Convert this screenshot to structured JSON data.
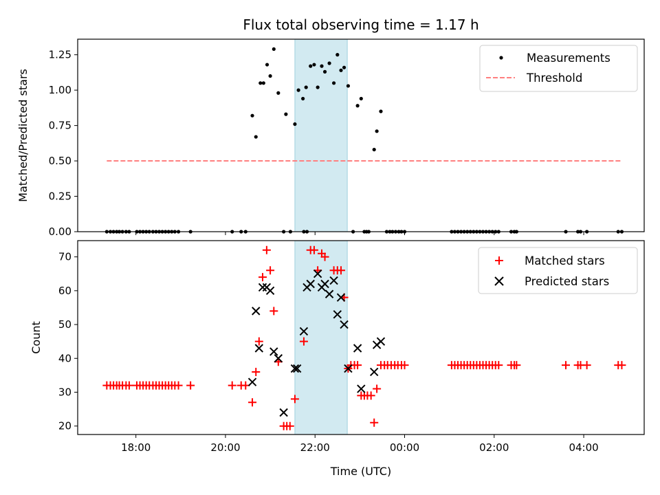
{
  "chart_data": {
    "title": "Flux total observing time = 1.17 h",
    "xlabel": "Time (UTC)",
    "x_unit": "hours (UTC, continuing past midnight)",
    "x_ticks": [
      {
        "value": 18,
        "label": "18:00"
      },
      {
        "value": 20,
        "label": "20:00"
      },
      {
        "value": 22,
        "label": "22:00"
      },
      {
        "value": 24,
        "label": "00:00"
      },
      {
        "value": 26,
        "label": "02:00"
      },
      {
        "value": 28,
        "label": "04:00"
      }
    ],
    "xlim": [
      16.7,
      29.35
    ],
    "highlight_span": [
      21.55,
      22.72
    ],
    "highlight_color": "#add8e6",
    "panels": [
      {
        "type": "scatter",
        "ylabel": "Matched/Predicted stars",
        "ylim": [
          0,
          1.36
        ],
        "y_ticks": [
          {
            "value": 0,
            "label": "0.00"
          },
          {
            "value": 0.25,
            "label": "0.25"
          },
          {
            "value": 0.5,
            "label": "0.50"
          },
          {
            "value": 0.75,
            "label": "0.75"
          },
          {
            "value": 1.0,
            "label": "1.00"
          },
          {
            "value": 1.25,
            "label": "1.25"
          }
        ],
        "legend_position": "top-right",
        "series": [
          {
            "name": "Measurements",
            "marker": "dot",
            "color": "#000000",
            "points": [
              [
                17.35,
                0
              ],
              [
                17.43,
                0
              ],
              [
                17.5,
                0
              ],
              [
                17.57,
                0
              ],
              [
                17.63,
                0
              ],
              [
                17.7,
                0
              ],
              [
                17.78,
                0
              ],
              [
                17.85,
                0
              ],
              [
                18.02,
                0
              ],
              [
                18.09,
                0
              ],
              [
                18.16,
                0
              ],
              [
                18.23,
                0
              ],
              [
                18.3,
                0
              ],
              [
                18.38,
                0
              ],
              [
                18.45,
                0
              ],
              [
                18.52,
                0
              ],
              [
                18.59,
                0
              ],
              [
                18.66,
                0
              ],
              [
                18.73,
                0
              ],
              [
                18.8,
                0
              ],
              [
                18.87,
                0
              ],
              [
                18.95,
                0
              ],
              [
                19.22,
                0
              ],
              [
                20.15,
                0
              ],
              [
                20.35,
                0
              ],
              [
                20.45,
                0
              ],
              [
                20.6,
                0.82
              ],
              [
                20.68,
                0.67
              ],
              [
                20.78,
                1.05
              ],
              [
                20.85,
                1.05
              ],
              [
                20.93,
                1.18
              ],
              [
                21.0,
                1.1
              ],
              [
                21.08,
                1.29
              ],
              [
                21.18,
                0.98
              ],
              [
                21.35,
                0.83
              ],
              [
                21.55,
                0.76
              ],
              [
                21.3,
                0
              ],
              [
                21.45,
                0
              ],
              [
                21.75,
                0
              ],
              [
                21.82,
                0
              ],
              [
                21.63,
                1.0
              ],
              [
                21.73,
                0.94
              ],
              [
                21.8,
                1.02
              ],
              [
                21.9,
                1.17
              ],
              [
                21.98,
                1.18
              ],
              [
                22.06,
                1.02
              ],
              [
                22.15,
                1.17
              ],
              [
                22.22,
                1.13
              ],
              [
                22.32,
                1.19
              ],
              [
                22.42,
                1.05
              ],
              [
                22.5,
                1.25
              ],
              [
                22.58,
                1.14
              ],
              [
                22.65,
                1.16
              ],
              [
                22.74,
                1.03
              ],
              [
                22.85,
                0
              ],
              [
                22.95,
                0.89
              ],
              [
                23.03,
                0.94
              ],
              [
                23.1,
                0
              ],
              [
                23.15,
                0
              ],
              [
                23.2,
                0
              ],
              [
                23.32,
                0.58
              ],
              [
                23.38,
                0.71
              ],
              [
                23.47,
                0.85
              ],
              [
                23.6,
                0
              ],
              [
                23.67,
                0
              ],
              [
                23.73,
                0
              ],
              [
                23.8,
                0
              ],
              [
                23.87,
                0
              ],
              [
                23.93,
                0
              ],
              [
                24.0,
                0
              ],
              [
                25.05,
                0
              ],
              [
                25.12,
                0
              ],
              [
                25.19,
                0
              ],
              [
                25.26,
                0
              ],
              [
                25.33,
                0
              ],
              [
                25.4,
                0
              ],
              [
                25.47,
                0
              ],
              [
                25.54,
                0
              ],
              [
                25.61,
                0
              ],
              [
                25.68,
                0
              ],
              [
                25.75,
                0
              ],
              [
                25.82,
                0
              ],
              [
                25.89,
                0
              ],
              [
                25.96,
                0
              ],
              [
                26.03,
                0
              ],
              [
                26.1,
                0
              ],
              [
                26.38,
                0
              ],
              [
                26.45,
                0
              ],
              [
                26.5,
                0
              ],
              [
                27.6,
                0
              ],
              [
                27.87,
                0
              ],
              [
                27.93,
                0
              ],
              [
                28.07,
                0
              ],
              [
                28.77,
                0
              ],
              [
                28.85,
                0
              ]
            ]
          },
          {
            "name": "Threshold",
            "marker": "dashed-line",
            "color": "#ff7f7f",
            "points": [
              [
                17.35,
                0.5
              ],
              [
                28.85,
                0.5
              ]
            ]
          }
        ]
      },
      {
        "type": "scatter",
        "ylabel": "Count",
        "ylim": [
          17.5,
          74.8
        ],
        "y_ticks": [
          {
            "value": 20,
            "label": "20"
          },
          {
            "value": 30,
            "label": "30"
          },
          {
            "value": 40,
            "label": "40"
          },
          {
            "value": 50,
            "label": "50"
          },
          {
            "value": 60,
            "label": "60"
          },
          {
            "value": 70,
            "label": "70"
          }
        ],
        "legend_position": "top-right",
        "series": [
          {
            "name": "Matched stars",
            "marker": "plus",
            "color": "#ff0000",
            "points": [
              [
                17.35,
                32
              ],
              [
                17.43,
                32
              ],
              [
                17.5,
                32
              ],
              [
                17.57,
                32
              ],
              [
                17.63,
                32
              ],
              [
                17.7,
                32
              ],
              [
                17.78,
                32
              ],
              [
                17.85,
                32
              ],
              [
                18.02,
                32
              ],
              [
                18.09,
                32
              ],
              [
                18.16,
                32
              ],
              [
                18.23,
                32
              ],
              [
                18.3,
                32
              ],
              [
                18.38,
                32
              ],
              [
                18.45,
                32
              ],
              [
                18.52,
                32
              ],
              [
                18.59,
                32
              ],
              [
                18.66,
                32
              ],
              [
                18.73,
                32
              ],
              [
                18.8,
                32
              ],
              [
                18.87,
                32
              ],
              [
                18.95,
                32
              ],
              [
                19.22,
                32
              ],
              [
                20.15,
                32
              ],
              [
                20.35,
                32
              ],
              [
                20.45,
                32
              ],
              [
                20.6,
                27
              ],
              [
                20.68,
                36
              ],
              [
                20.75,
                45
              ],
              [
                20.83,
                64
              ],
              [
                20.92,
                72
              ],
              [
                21.0,
                66
              ],
              [
                21.08,
                54
              ],
              [
                21.18,
                39
              ],
              [
                21.3,
                20
              ],
              [
                21.37,
                20
              ],
              [
                21.44,
                20
              ],
              [
                21.55,
                28
              ],
              [
                21.75,
                45
              ],
              [
                21.9,
                72
              ],
              [
                21.98,
                72
              ],
              [
                22.06,
                66
              ],
              [
                22.15,
                71
              ],
              [
                22.22,
                70
              ],
              [
                22.42,
                66
              ],
              [
                22.5,
                66
              ],
              [
                22.58,
                66
              ],
              [
                22.65,
                58
              ],
              [
                22.74,
                37
              ],
              [
                22.8,
                38
              ],
              [
                22.88,
                38
              ],
              [
                22.95,
                38
              ],
              [
                23.03,
                29
              ],
              [
                23.1,
                29
              ],
              [
                23.17,
                29
              ],
              [
                23.25,
                29
              ],
              [
                23.32,
                21
              ],
              [
                23.38,
                31
              ],
              [
                23.47,
                38
              ],
              [
                23.55,
                38
              ],
              [
                23.62,
                38
              ],
              [
                23.7,
                38
              ],
              [
                23.78,
                38
              ],
              [
                23.85,
                38
              ],
              [
                23.93,
                38
              ],
              [
                24.0,
                38
              ],
              [
                25.05,
                38
              ],
              [
                25.12,
                38
              ],
              [
                25.19,
                38
              ],
              [
                25.26,
                38
              ],
              [
                25.33,
                38
              ],
              [
                25.4,
                38
              ],
              [
                25.47,
                38
              ],
              [
                25.54,
                38
              ],
              [
                25.61,
                38
              ],
              [
                25.68,
                38
              ],
              [
                25.75,
                38
              ],
              [
                25.82,
                38
              ],
              [
                25.89,
                38
              ],
              [
                25.96,
                38
              ],
              [
                26.03,
                38
              ],
              [
                26.1,
                38
              ],
              [
                26.38,
                38
              ],
              [
                26.45,
                38
              ],
              [
                26.5,
                38
              ],
              [
                27.6,
                38
              ],
              [
                27.87,
                38
              ],
              [
                27.93,
                38
              ],
              [
                28.07,
                38
              ],
              [
                28.77,
                38
              ],
              [
                28.85,
                38
              ]
            ]
          },
          {
            "name": "Predicted stars",
            "marker": "x",
            "color": "#000000",
            "points": [
              [
                20.6,
                33
              ],
              [
                20.68,
                54
              ],
              [
                20.75,
                43
              ],
              [
                20.83,
                61
              ],
              [
                20.92,
                61
              ],
              [
                21.0,
                60
              ],
              [
                21.08,
                42
              ],
              [
                21.18,
                40
              ],
              [
                21.3,
                24
              ],
              [
                21.55,
                37
              ],
              [
                21.6,
                37
              ],
              [
                21.75,
                48
              ],
              [
                21.82,
                61
              ],
              [
                21.9,
                62
              ],
              [
                22.06,
                65
              ],
              [
                22.15,
                61
              ],
              [
                22.22,
                62
              ],
              [
                22.32,
                59
              ],
              [
                22.42,
                63
              ],
              [
                22.5,
                53
              ],
              [
                22.58,
                58
              ],
              [
                22.65,
                50
              ],
              [
                22.74,
                37
              ],
              [
                22.95,
                43
              ],
              [
                23.03,
                31
              ],
              [
                23.32,
                36
              ],
              [
                23.38,
                44
              ],
              [
                23.47,
                45
              ]
            ]
          }
        ]
      }
    ]
  }
}
